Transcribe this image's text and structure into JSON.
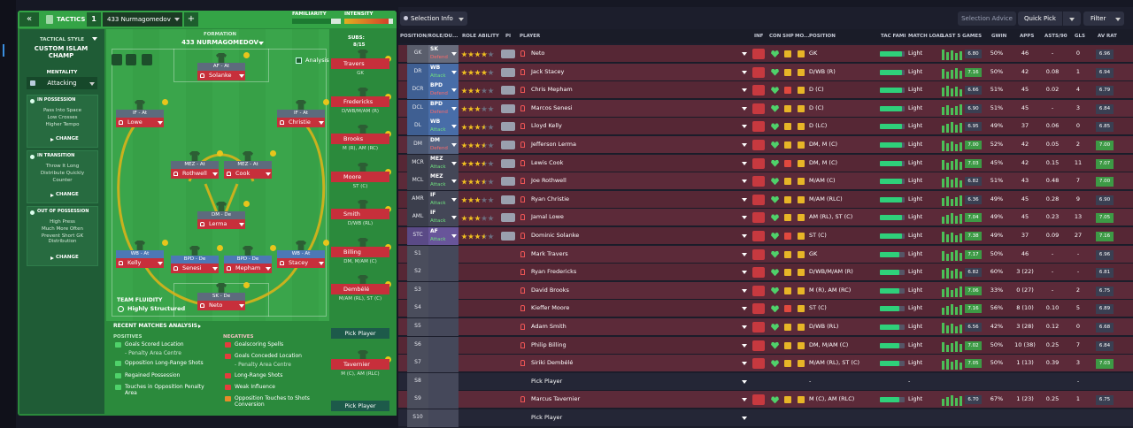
{
  "header": {
    "back": "«",
    "tactics": "TACTICS",
    "slot": "1",
    "tactic_name": "433 Nurmagomedov",
    "add": "+",
    "familiarity": "FAMILIARITY",
    "intensity": "INTENSITY"
  },
  "sidebar": {
    "style_label": "TACTICAL STYLE",
    "style": "CUSTOM ISLAM CHAMP",
    "mentality_label": "MENTALITY",
    "mentality": "Attacking",
    "phases": [
      {
        "title": "IN POSSESSION",
        "items": [
          "Pass Into Space",
          "Low Crosses",
          "Higher Tempo"
        ],
        "button": "CHANGE"
      },
      {
        "title": "IN TRANSITION",
        "items": [
          "Throw It Long",
          "Distribute Quickly",
          "Counter"
        ],
        "button": "CHANGE"
      },
      {
        "title": "OUT OF POSSESSION",
        "items": [
          "High Press",
          "Much More Often",
          "Prevent Short GK Distribution"
        ],
        "button": "CHANGE"
      }
    ]
  },
  "pitch": {
    "formation_label": "FORMATION",
    "formation": "433 NURMAGOMEDOV",
    "analysis": "Analysis",
    "subs_label": "SUBS:",
    "subs": "8/15",
    "players": [
      {
        "role": "AF - At",
        "name": "Solanke"
      },
      {
        "role": "IF - At",
        "name": "Lowe"
      },
      {
        "role": "IF - At",
        "name": "Christie"
      },
      {
        "role": "MEZ - At",
        "name": "Rothwell"
      },
      {
        "role": "MEZ - At",
        "name": "Cook"
      },
      {
        "role": "DM - De",
        "name": "Lerma"
      },
      {
        "role": "WB - At",
        "name": "Kelly"
      },
      {
        "role": "BPD - De",
        "name": "Senesi"
      },
      {
        "role": "BPD - De",
        "name": "Mepham"
      },
      {
        "role": "WB - At",
        "name": "Stacey"
      },
      {
        "role": "SK - De",
        "name": "Neto"
      }
    ],
    "fluidity_label": "TEAM FLUIDITY",
    "fluidity": "Highly Structured"
  },
  "subs_list": [
    {
      "name": "Travers",
      "pos": "GK"
    },
    {
      "name": "Fredericks",
      "pos": "D/WB/M/AM (R)"
    },
    {
      "name": "Brooks",
      "pos": "M (R), AM (RC)"
    },
    {
      "name": "Moore",
      "pos": "ST (C)"
    },
    {
      "name": "Smith",
      "pos": "D/WB (RL)"
    },
    {
      "name": "Billing",
      "pos": "DM, M/AM (C)"
    },
    {
      "name": "Dembélé",
      "pos": "M/AM (RL), ST (C)"
    },
    {
      "name": "Pick Player"
    },
    {
      "name": "Tavernier",
      "pos": "M (C), AM (RLC)"
    },
    {
      "name": "Pick Player"
    }
  ],
  "analysis": {
    "title": "RECENT MATCHES ANALYSIS",
    "positives_label": "POSITIVES",
    "positives": [
      "Goals Scored Location",
      "- Penalty Area Centre",
      "Opposition Long-Range Shots",
      "Regained Possession",
      "Touches in Opposition Penalty Area"
    ],
    "negatives_label": "NEGATIVES",
    "negatives": [
      "Goalscoring Spells",
      "Goals Conceded Location",
      "- Penalty Area Centre",
      "Long-Range Shots",
      "Weak Influence",
      "Opposition Touches to Shots Conversion"
    ]
  },
  "toolbar": {
    "selection_info": "Selection Info",
    "selection_advice": "Selection Advice",
    "quick_pick": "Quick Pick",
    "filter": "Filter"
  },
  "table": {
    "columns": [
      "POSITION/ROLE/DU...",
      "ROLE ABILITY",
      "PI",
      "PLAYER",
      "INF",
      "CON",
      "SHP",
      "MO...",
      "POSITION",
      "TAC FAMI",
      "MATCH LOAD",
      "LAST 5 GAMES",
      "GWIN",
      "APPS",
      "ASTS/90",
      "GLS",
      "AV RAT"
    ],
    "rows": [
      {
        "pos": "GK",
        "role": "SK",
        "duty": "Defend",
        "stars": 4,
        "player": "Neto",
        "position": "GK",
        "match_load": "Light",
        "last5": "6.80",
        "gwin": "50%",
        "apps": "46",
        "asts90": "-",
        "gls": "0",
        "avrat": "6.96"
      },
      {
        "pos": "DR",
        "role": "WB",
        "duty": "Attack",
        "stars": 4,
        "player": "Jack Stacey",
        "position": "D/WB (R)",
        "match_load": "Light",
        "last5": "7.16",
        "gwin": "50%",
        "apps": "42",
        "asts90": "0.08",
        "gls": "1",
        "avrat": "6.94"
      },
      {
        "pos": "DCR",
        "role": "BPD",
        "duty": "Defend",
        "stars": 3,
        "player": "Chris Mepham",
        "position": "D (C)",
        "match_load": "Light",
        "last5": "6.66",
        "gwin": "51%",
        "apps": "45",
        "asts90": "0.02",
        "gls": "4",
        "avrat": "6.79"
      },
      {
        "pos": "DCL",
        "role": "BPD",
        "duty": "Defend",
        "stars": 3,
        "player": "Marcos Senesi",
        "position": "D (C)",
        "match_load": "Light",
        "last5": "6.90",
        "gwin": "51%",
        "apps": "45",
        "asts90": "-",
        "gls": "3",
        "avrat": "6.84"
      },
      {
        "pos": "DL",
        "role": "WB",
        "duty": "Attack",
        "stars": 3.5,
        "player": "Lloyd Kelly",
        "position": "D (LC)",
        "match_load": "Light",
        "last5": "6.95",
        "gwin": "49%",
        "apps": "37",
        "asts90": "0.06",
        "gls": "0",
        "avrat": "6.85"
      },
      {
        "pos": "DM",
        "role": "DM",
        "duty": "Defend",
        "stars": 3.5,
        "player": "Jefferson Lerma",
        "position": "DM, M (C)",
        "match_load": "Light",
        "last5": "7.00",
        "gwin": "52%",
        "apps": "42",
        "asts90": "0.05",
        "gls": "2",
        "avrat": "7.00"
      },
      {
        "pos": "MCR",
        "role": "MEZ",
        "duty": "Attack",
        "stars": 3.5,
        "player": "Lewis Cook",
        "position": "DM, M (C)",
        "match_load": "Light",
        "last5": "7.03",
        "gwin": "45%",
        "apps": "42",
        "asts90": "0.15",
        "gls": "11",
        "avrat": "7.07"
      },
      {
        "pos": "MCL",
        "role": "MEZ",
        "duty": "Attack",
        "stars": 3.5,
        "player": "Joe Rothwell",
        "position": "M/AM (C)",
        "match_load": "Light",
        "last5": "6.82",
        "gwin": "51%",
        "apps": "43",
        "asts90": "0.48",
        "gls": "7",
        "avrat": "7.00"
      },
      {
        "pos": "AMR",
        "role": "IF",
        "duty": "Attack",
        "stars": 3,
        "player": "Ryan Christie",
        "position": "M/AM (RLC)",
        "match_load": "Light",
        "last5": "6.36",
        "gwin": "49%",
        "apps": "45",
        "asts90": "0.28",
        "gls": "9",
        "avrat": "6.90"
      },
      {
        "pos": "AML",
        "role": "IF",
        "duty": "Attack",
        "stars": 3,
        "player": "Jamal Lowe",
        "position": "AM (RL), ST (C)",
        "match_load": "Light",
        "last5": "7.04",
        "gwin": "49%",
        "apps": "45",
        "asts90": "0.23",
        "gls": "13",
        "avrat": "7.05"
      },
      {
        "pos": "STC",
        "role": "AF",
        "duty": "Attack",
        "stars": 3.5,
        "player": "Dominic Solanke",
        "position": "ST (C)",
        "match_load": "Light",
        "last5": "7.38",
        "gwin": "49%",
        "apps": "37",
        "asts90": "0.09",
        "gls": "27",
        "avrat": "7.16"
      },
      {
        "pos": "S1",
        "player": "Mark Travers",
        "position": "GK",
        "match_load": "Light",
        "last5": "7.17",
        "gwin": "50%",
        "apps": "46",
        "asts90": "-",
        "gls": "-",
        "avrat": "6.96"
      },
      {
        "pos": "S2",
        "player": "Ryan Fredericks",
        "position": "D/WB/M/AM (R)",
        "match_load": "Light",
        "last5": "6.82",
        "gwin": "60%",
        "apps": "3 (22)",
        "asts90": "-",
        "gls": "-",
        "avrat": "6.81"
      },
      {
        "pos": "S3",
        "player": "David Brooks",
        "position": "M (R), AM (RC)",
        "match_load": "Light",
        "last5": "7.06",
        "gwin": "33%",
        "apps": "0 (27)",
        "asts90": "-",
        "gls": "2",
        "avrat": "6.75"
      },
      {
        "pos": "S4",
        "player": "Kieffer Moore",
        "position": "ST (C)",
        "match_load": "Light",
        "last5": "7.16",
        "gwin": "56%",
        "apps": "8 (10)",
        "asts90": "0.10",
        "gls": "5",
        "avrat": "6.89"
      },
      {
        "pos": "S5",
        "player": "Adam Smith",
        "position": "D/WB (RL)",
        "match_load": "Light",
        "last5": "6.56",
        "gwin": "42%",
        "apps": "3 (28)",
        "asts90": "0.12",
        "gls": "0",
        "avrat": "6.68"
      },
      {
        "pos": "S6",
        "player": "Philip Billing",
        "position": "DM, M/AM (C)",
        "match_load": "Light",
        "last5": "7.02",
        "gwin": "50%",
        "apps": "10 (38)",
        "asts90": "0.25",
        "gls": "7",
        "avrat": "6.84"
      },
      {
        "pos": "S7",
        "player": "Siriki Dembélé",
        "position": "M/AM (RL), ST (C)",
        "match_load": "Light",
        "last5": "7.05",
        "gwin": "50%",
        "apps": "1 (13)",
        "asts90": "0.39",
        "gls": "3",
        "avrat": "7.03"
      },
      {
        "pos": "S8",
        "player": "Pick Player",
        "position": "-",
        "match_load": "-",
        "gls": "-"
      },
      {
        "pos": "S9",
        "player": "Marcus Tavernier",
        "position": "M (C), AM (RLC)",
        "match_load": "Light",
        "last5": "6.70",
        "gwin": "67%",
        "apps": "1 (23)",
        "asts90": "0.25",
        "gls": "1",
        "avrat": "6.75"
      },
      {
        "pos": "S10",
        "player": "Pick Player"
      }
    ]
  }
}
